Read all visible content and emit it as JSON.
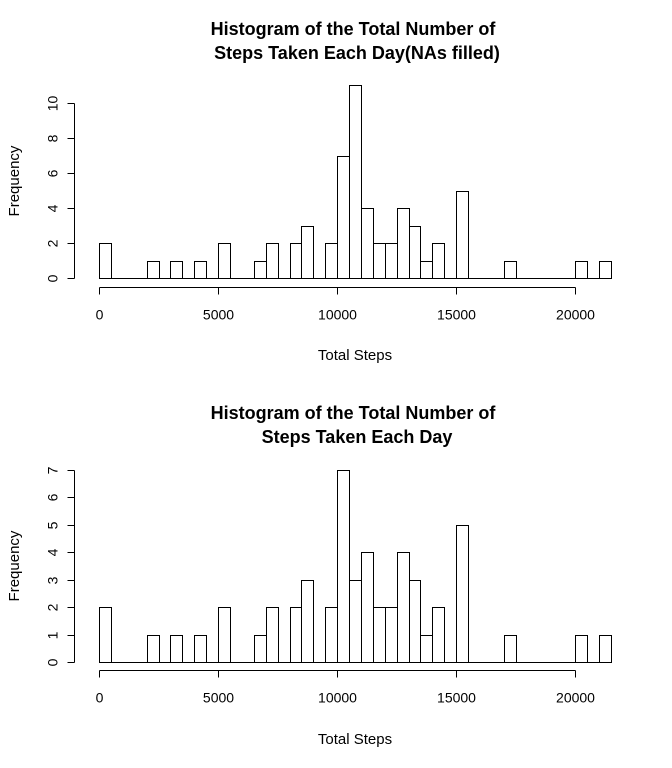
{
  "chart_data": [
    {
      "type": "bar",
      "title_lines": [
        "Histogram of the Total Number of",
        "Steps Taken Each Day(NAs filled)"
      ],
      "xlabel": "Total Steps",
      "ylabel": "Frequency",
      "bin_width": 500,
      "bins_start": 0,
      "counts": [
        2,
        0,
        0,
        0,
        1,
        0,
        1,
        0,
        1,
        0,
        2,
        0,
        0,
        1,
        2,
        0,
        2,
        3,
        0,
        2,
        7,
        11,
        4,
        2,
        2,
        4,
        3,
        1,
        2,
        0,
        5,
        0,
        0,
        0,
        1,
        0,
        0,
        0,
        0,
        0,
        1,
        0,
        1
      ],
      "xlim": [
        0,
        21500
      ],
      "ylim": [
        0,
        10
      ],
      "x_ticks": [
        0,
        5000,
        10000,
        15000,
        20000
      ],
      "y_ticks": [
        0,
        2,
        4,
        6,
        8,
        10
      ],
      "x_tick_labels": [
        "0",
        "5000",
        "10000",
        "15000",
        "20000"
      ],
      "y_tick_labels": [
        "0",
        "2",
        "4",
        "6",
        "8",
        "10"
      ]
    },
    {
      "type": "bar",
      "title_lines": [
        "Histogram of the Total Number of",
        "Steps Taken Each Day"
      ],
      "xlabel": "Total Steps",
      "ylabel": "Frequency",
      "bin_width": 500,
      "bins_start": 0,
      "counts": [
        2,
        0,
        0,
        0,
        1,
        0,
        1,
        0,
        1,
        0,
        2,
        0,
        0,
        1,
        2,
        0,
        2,
        3,
        0,
        2,
        7,
        3,
        4,
        2,
        2,
        4,
        3,
        1,
        2,
        0,
        5,
        0,
        0,
        0,
        1,
        0,
        0,
        0,
        0,
        0,
        1,
        0,
        1
      ],
      "xlim": [
        0,
        21500
      ],
      "ylim": [
        0,
        7
      ],
      "x_ticks": [
        0,
        5000,
        10000,
        15000,
        20000
      ],
      "y_ticks": [
        0,
        1,
        2,
        3,
        4,
        5,
        6,
        7
      ],
      "x_tick_labels": [
        "0",
        "5000",
        "10000",
        "15000",
        "20000"
      ],
      "y_tick_labels": [
        "0",
        "1",
        "2",
        "3",
        "4",
        "5",
        "6",
        "7"
      ]
    }
  ]
}
